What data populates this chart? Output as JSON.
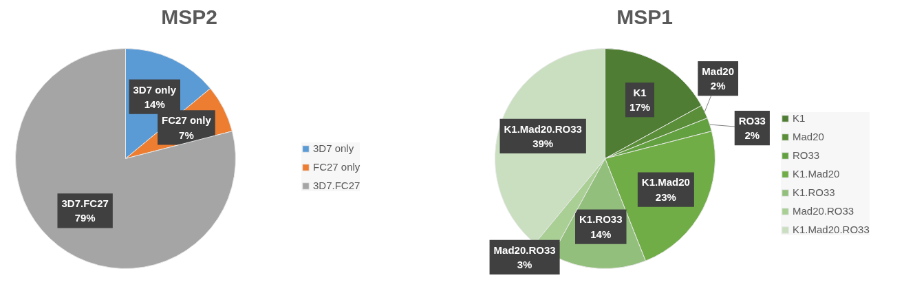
{
  "chart_data": [
    {
      "type": "pie",
      "title": "MSP2",
      "categories": [
        "3D7 only",
        "FC27 only",
        "3D7.FC27"
      ],
      "values": [
        14,
        7,
        79
      ],
      "colors": [
        "#5b9bd5",
        "#ed7d31",
        "#a5a5a5"
      ],
      "value_labels": [
        "14%",
        "7%",
        "79%"
      ],
      "legend": "right"
    },
    {
      "type": "pie",
      "title": "MSP1",
      "categories": [
        "K1",
        "Mad20",
        "RO33",
        "K1.Mad20",
        "K1.RO33",
        "Mad20.RO33",
        "K1.Mad20.RO33"
      ],
      "values": [
        17,
        2,
        2,
        23,
        14,
        3,
        39
      ],
      "colors": [
        "#4e7d33",
        "#5a8e38",
        "#62a040",
        "#70ad47",
        "#93bf7c",
        "#a9cf95",
        "#c9dfc0"
      ],
      "value_labels": [
        "17%",
        "2%",
        "2%",
        "23%",
        "14%",
        "3%",
        "39%"
      ],
      "legend": "right"
    }
  ]
}
